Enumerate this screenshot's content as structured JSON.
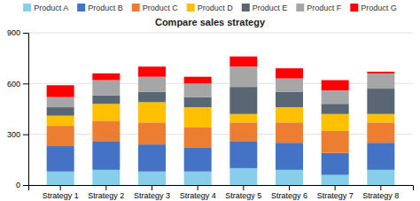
{
  "chart_data": {
    "type": "bar",
    "stacked": true,
    "title": "Compare sales strategy",
    "categories": [
      "Strategy 1",
      "Strategy 2",
      "Strategy 3",
      "Strategy 4",
      "Strategy 5",
      "Strategy 6",
      "Strategy 7",
      "Strategy 8"
    ],
    "series": [
      {
        "name": "Product A",
        "color": "#87CEEB",
        "values": [
          80,
          90,
          80,
          80,
          100,
          90,
          60,
          90
        ]
      },
      {
        "name": "Product B",
        "color": "#4472C4",
        "values": [
          150,
          170,
          160,
          140,
          160,
          160,
          130,
          160
        ]
      },
      {
        "name": "Product C",
        "color": "#ED7D31",
        "values": [
          120,
          120,
          130,
          120,
          110,
          120,
          130,
          120
        ]
      },
      {
        "name": "Product D",
        "color": "#FFC000",
        "values": [
          60,
          100,
          120,
          120,
          50,
          90,
          100,
          50
        ]
      },
      {
        "name": "Product E",
        "color": "#596673",
        "values": [
          50,
          50,
          60,
          60,
          160,
          90,
          60,
          150
        ]
      },
      {
        "name": "Product F",
        "color": "#A6A6A6",
        "values": [
          60,
          90,
          90,
          80,
          120,
          80,
          80,
          90
        ]
      },
      {
        "name": "Product G",
        "color": "#FF0000",
        "values": [
          70,
          40,
          60,
          40,
          60,
          60,
          60,
          10
        ]
      }
    ],
    "ylim": [
      0,
      900
    ],
    "yticks": [
      0,
      300,
      600,
      900
    ],
    "grid": true,
    "legend": "top"
  }
}
